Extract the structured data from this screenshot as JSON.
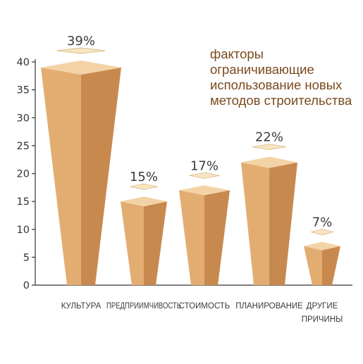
{
  "chart_data": {
    "type": "bar",
    "title_lines": [
      "факторы",
      "ограничивающие",
      "использование новых",
      "методов строительства"
    ],
    "categories": [
      [
        "КУЛЬТУРА"
      ],
      [
        "ПРЕДПРИИМЧИВОСТЬ"
      ],
      [
        "СТОИМОСТЬ"
      ],
      [
        "ПЛАНИРОВАНИЕ"
      ],
      [
        "ДРУГИЕ",
        "ПРИЧИНЫ"
      ]
    ],
    "values": [
      39,
      15,
      17,
      22,
      7
    ],
    "value_labels": [
      "39%",
      "15%",
      "17%",
      "22%",
      "7%"
    ],
    "y_ticks": [
      "0",
      "5",
      "10",
      "15",
      "20",
      "25",
      "30",
      "35",
      "40"
    ],
    "ylim": [
      0,
      40
    ],
    "grid": false,
    "colors": {
      "bar_front": "#e3ad72",
      "bar_side": "#c8894f",
      "bar_top": "#f3d3a6",
      "label": "#3b3b3b",
      "title": "#7a4a1e",
      "axis": "#333333"
    }
  }
}
